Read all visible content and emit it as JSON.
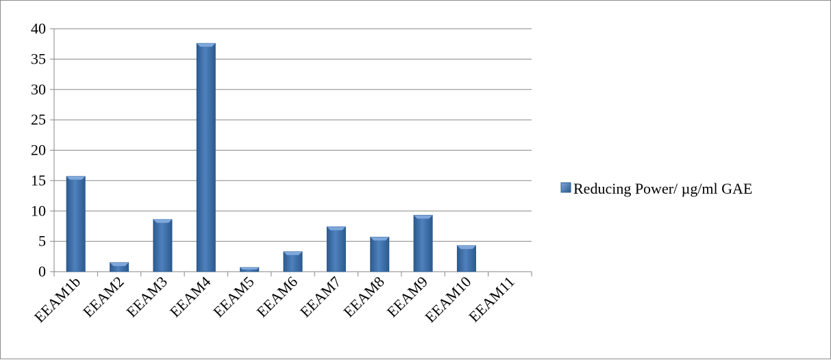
{
  "chart_data": {
    "type": "bar",
    "title": "",
    "xlabel": "",
    "ylabel": "",
    "categories": [
      "EEAM1b",
      "EEAM2",
      "EEAM3",
      "EEAM4",
      "EEAM5",
      "EEAM6",
      "EEAM7",
      "EEAM8",
      "EEAM9",
      "EEAM10",
      "EEAM11"
    ],
    "series": [
      {
        "name": "Reducing Power/  µg/ml GAE",
        "values": [
          15.7,
          1.5,
          8.6,
          37.6,
          0.7,
          3.3,
          7.4,
          5.7,
          9.3,
          4.3,
          0
        ]
      }
    ],
    "ylim": [
      0,
      40
    ],
    "yticks": [
      0,
      5,
      10,
      15,
      20,
      25,
      30,
      35,
      40
    ],
    "grid": "horizontal",
    "legend_position": "right",
    "colors": {
      "bar": "#4f81bd",
      "bar_dark": "#2b5a8e",
      "bar_light": "#7fa8dc",
      "grid": "#868686"
    }
  }
}
